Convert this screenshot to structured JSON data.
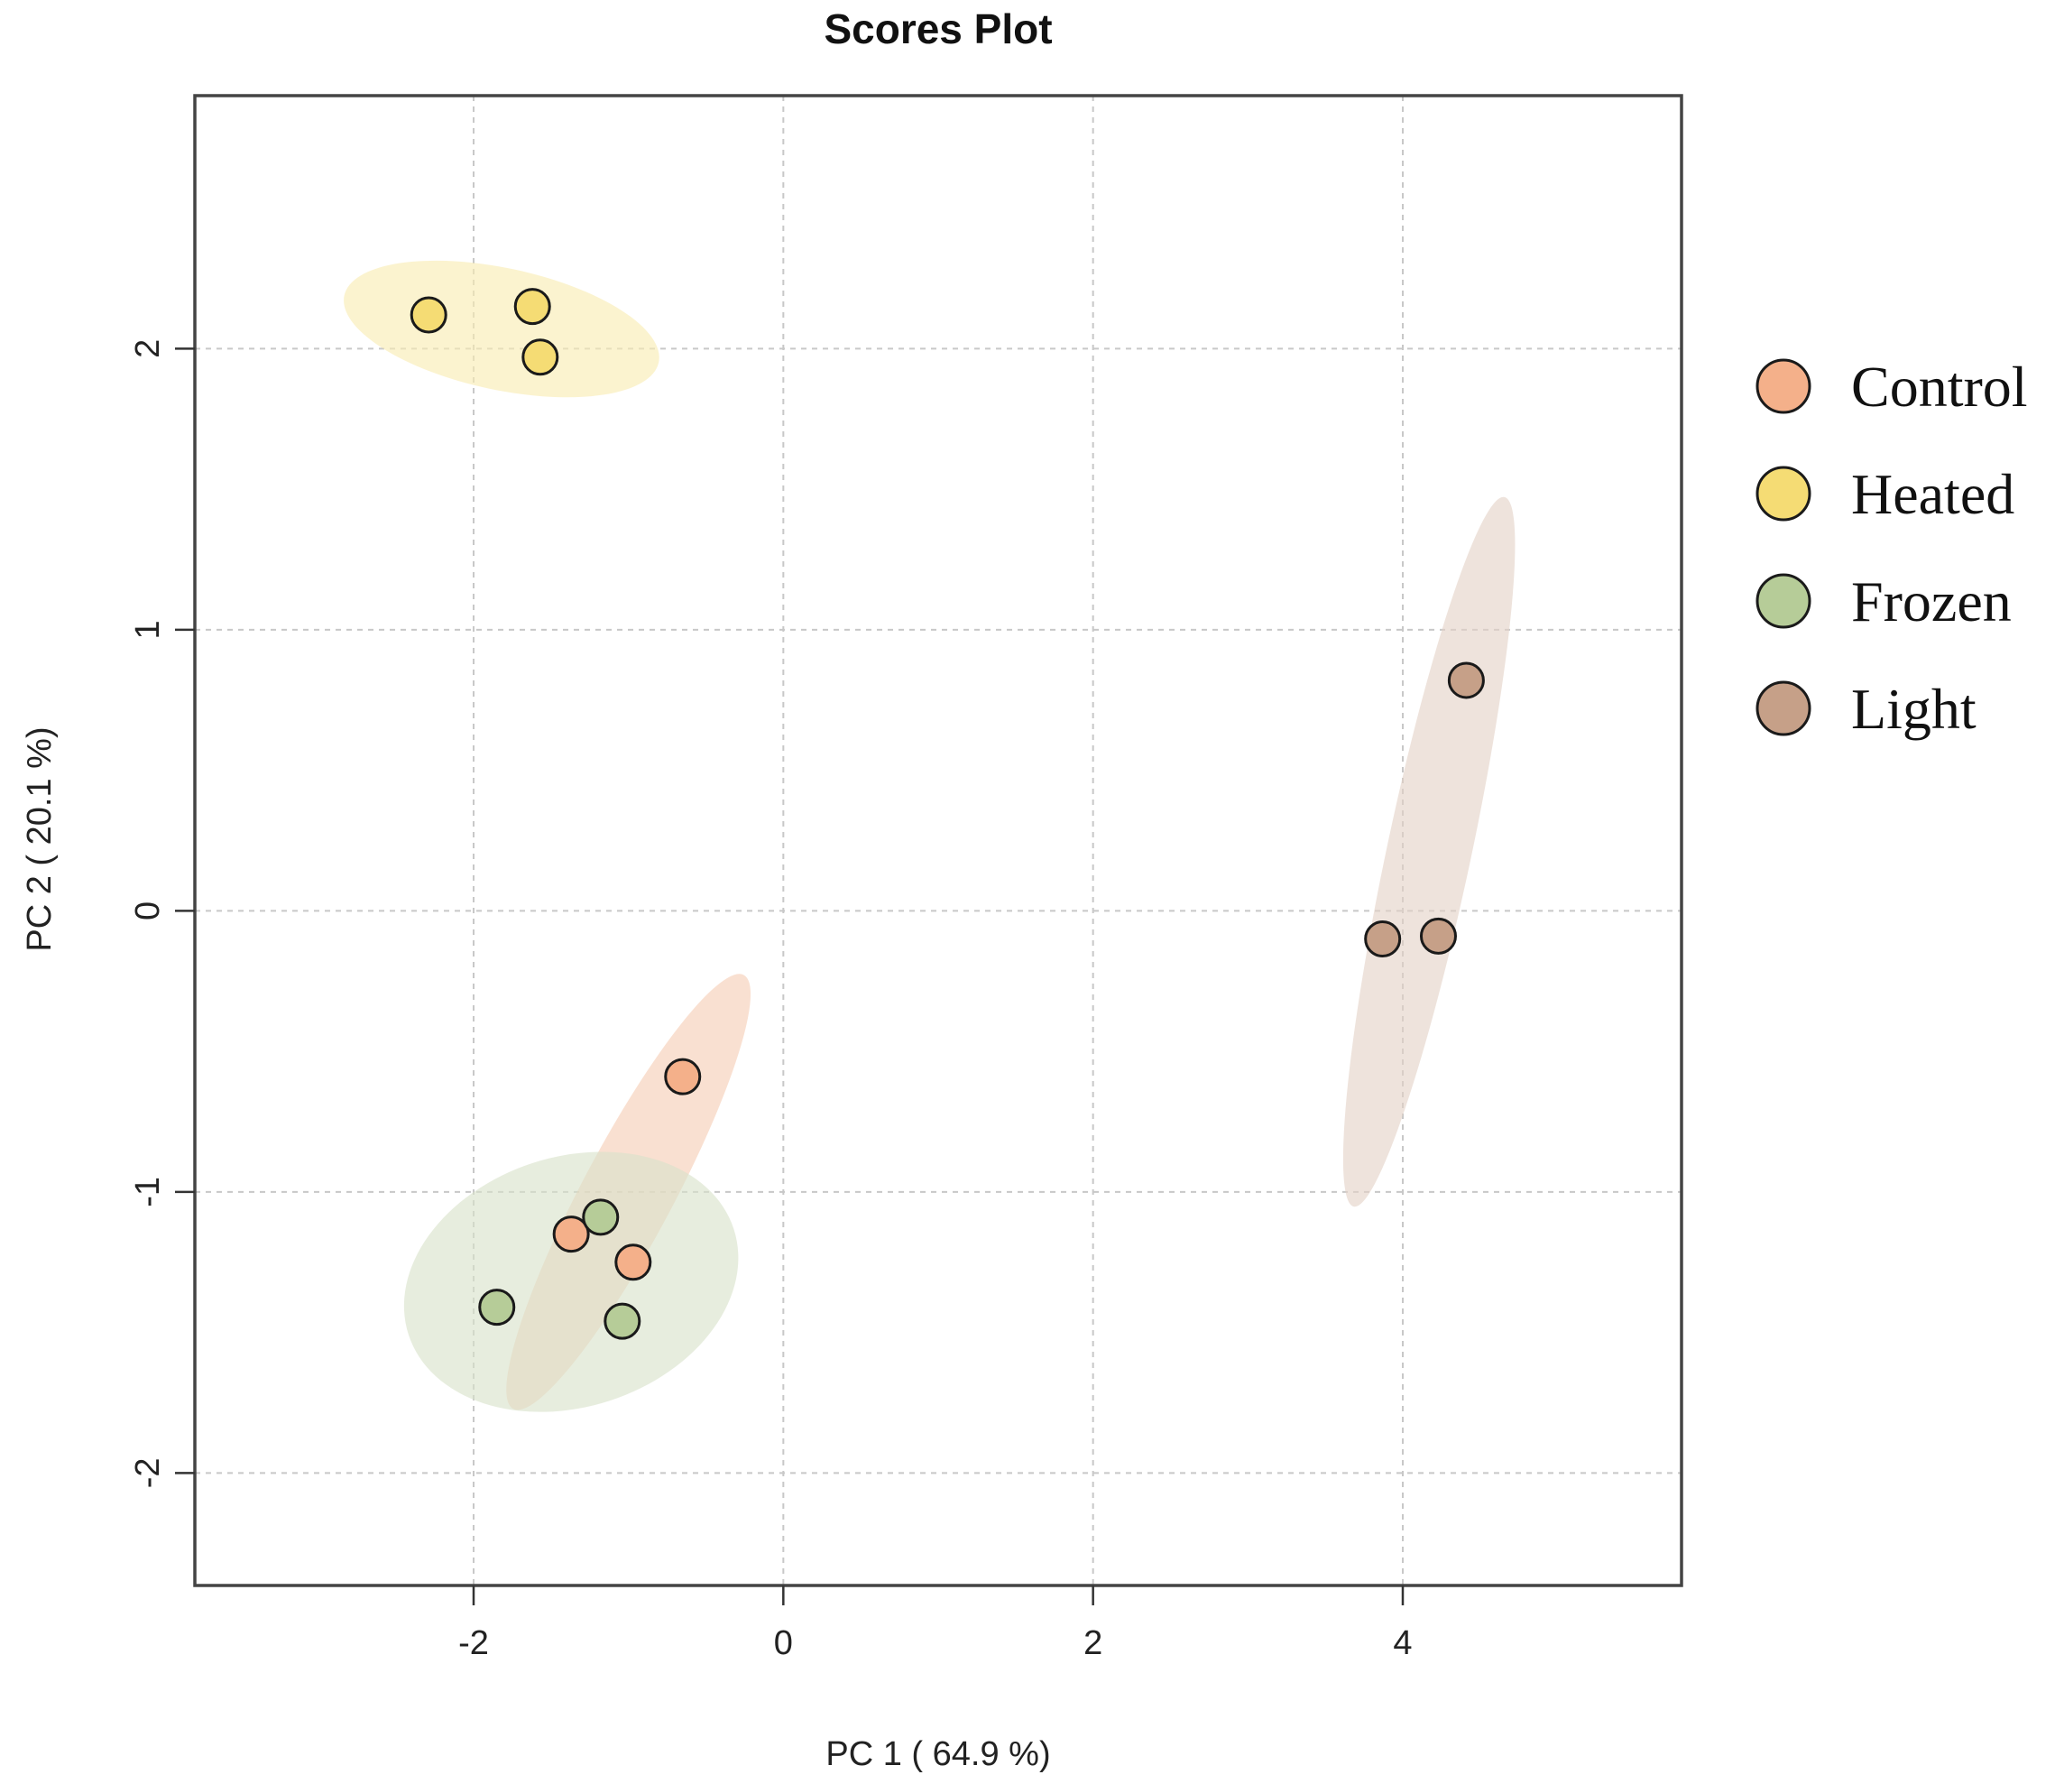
{
  "chart_data": {
    "type": "scatter",
    "title": "Scores Plot",
    "xlabel": "PC 1 ( 64.9 %)",
    "ylabel": "PC 2 ( 20.1 %)",
    "xlim": [
      -3.8,
      5.8
    ],
    "ylim": [
      -2.4,
      2.9
    ],
    "xticks": [
      -2,
      0,
      2,
      4
    ],
    "yticks": [
      -2,
      -1,
      0,
      1,
      2
    ],
    "xtick_labels": [
      "-2",
      "0",
      "2",
      "4"
    ],
    "ytick_labels": [
      "-2",
      "-1",
      "0",
      "1",
      "2"
    ],
    "grid": true,
    "legend_position": "right",
    "series": [
      {
        "name": "Control",
        "color": "#F4B08A",
        "ellipse_color": "#F6CDB4",
        "points": [
          [
            -0.65,
            -0.59
          ],
          [
            -1.37,
            -1.15
          ],
          [
            -0.97,
            -1.25
          ]
        ],
        "ellipse": {
          "center": [
            -1.0,
            -1.0
          ],
          "rx": 0.95,
          "ry": 0.24,
          "angle_deg": 62
        }
      },
      {
        "name": "Heated",
        "color": "#F5DC74",
        "ellipse_color": "#F8EBB1",
        "points": [
          [
            -2.29,
            2.12
          ],
          [
            -1.62,
            2.15
          ],
          [
            -1.57,
            1.97
          ]
        ],
        "ellipse": {
          "center": [
            -1.82,
            2.07
          ],
          "rx": 0.99,
          "ry": 0.22,
          "angle_deg": -12
        }
      },
      {
        "name": "Frozen",
        "color": "#B6CC98",
        "ellipse_color": "#D8E2C9",
        "points": [
          [
            -1.18,
            -1.09
          ],
          [
            -1.85,
            -1.41
          ],
          [
            -1.04,
            -1.46
          ]
        ],
        "ellipse": {
          "center": [
            -1.37,
            -1.32
          ],
          "rx": 1.0,
          "ry": 0.46,
          "angle_deg": 18
        }
      },
      {
        "name": "Light",
        "color": "#C6A088",
        "ellipse_color": "#E3D2C7",
        "points": [
          [
            4.41,
            0.82
          ],
          [
            3.87,
            -0.1
          ],
          [
            4.23,
            -0.09
          ]
        ],
        "ellipse": {
          "center": [
            4.17,
            0.21
          ],
          "rx": 1.31,
          "ry": 0.26,
          "angle_deg": 78
        }
      }
    ]
  }
}
